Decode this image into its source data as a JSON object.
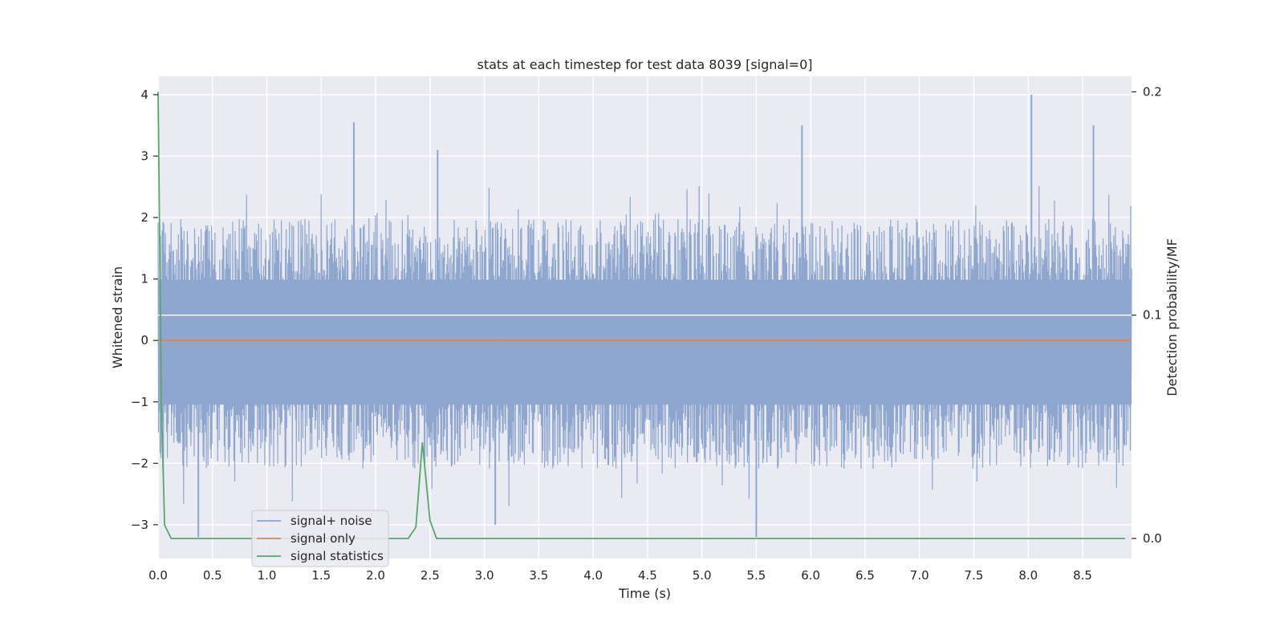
{
  "chart_data": {
    "type": "line",
    "title": "stats at each timestep for test data 8039 [signal=0]",
    "xlabel": "Time (s)",
    "ylabel": "Whitened strain",
    "ylabel_right": "Detection probability/MF",
    "xlim": [
      0.0,
      9.0
    ],
    "ylim": [
      -3.55,
      4.3
    ],
    "ylim_right": [
      -0.009,
      0.207
    ],
    "x_ticks": [
      "0.0",
      "0.5",
      "1.0",
      "1.5",
      "2.0",
      "2.5",
      "3.0",
      "3.5",
      "4.0",
      "4.5",
      "5.0",
      "5.5",
      "6.0",
      "6.5",
      "7.0",
      "7.5",
      "8.0",
      "8.5"
    ],
    "y_ticks": [
      "4",
      "3",
      "2",
      "1",
      "0",
      "−1",
      "−2",
      "−3"
    ],
    "y_right_ticks": [
      "0.2",
      "0.1",
      "0.0"
    ],
    "grid": true,
    "legend_position": "lower-left",
    "series": [
      {
        "name": "signal+ noise",
        "color": "#8fa6cf",
        "axis": "left",
        "peaks": [
          {
            "x": 0.37,
            "y": -3.2
          },
          {
            "x": 1.8,
            "y": 3.55
          },
          {
            "x": 2.45,
            "y": -2.0
          },
          {
            "x": 2.57,
            "y": 3.1
          },
          {
            "x": 3.1,
            "y": -3.0
          },
          {
            "x": 5.5,
            "y": -3.2
          },
          {
            "x": 5.92,
            "y": 3.5
          },
          {
            "x": 8.03,
            "y": 4.0
          },
          {
            "x": 8.6,
            "y": 3.5
          }
        ],
        "envelope": {
          "upper": 1.8,
          "lower": -1.9
        }
      },
      {
        "name": "signal only",
        "color": "#dd8452",
        "axis": "left",
        "x": [
          0.0,
          9.0
        ],
        "y": [
          0.0,
          0.0
        ]
      },
      {
        "name": "signal statistics",
        "color": "#55a868",
        "axis": "right",
        "x": [
          0.0,
          0.03,
          0.06,
          0.12,
          2.3,
          2.37,
          2.43,
          2.5,
          2.56,
          9.0
        ],
        "y": [
          0.2,
          0.06,
          0.006,
          0.0,
          0.0,
          0.005,
          0.043,
          0.008,
          0.0,
          0.0
        ]
      }
    ],
    "hline_right": 0.1
  }
}
